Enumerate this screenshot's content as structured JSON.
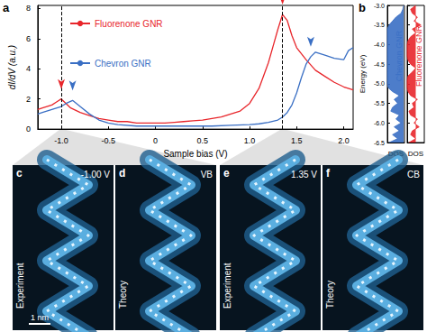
{
  "chart_data": [
    {
      "type": "line",
      "panel": "a",
      "x_label": "Sample bias (V)",
      "y_label": "dI/dV (a.u.)",
      "xlim": [
        -1.25,
        2.1
      ],
      "xticks": [
        {
          "value": -1.0,
          "label": "-1.0"
        },
        -0.5,
        0,
        0.5,
        {
          "value": 1.0,
          "label": "1.0"
        },
        1.5,
        {
          "value": 2.0,
          "label": "2.0"
        }
      ],
      "ylim": [
        0,
        8.2
      ],
      "yticks": [
        0,
        2,
        4,
        6,
        8
      ],
      "grid": false,
      "legend": "upper left",
      "vlines": [
        -1.0,
        1.35
      ],
      "series": [
        {
          "name": "Fluorenone GNR",
          "color": "#e8262b",
          "x": [
            -1.25,
            -1.2,
            -1.1,
            -1.05,
            -1.0,
            -0.95,
            -0.9,
            -0.8,
            -0.7,
            -0.6,
            -0.5,
            -0.4,
            -0.3,
            -0.2,
            -0.1,
            0,
            0.1,
            0.2,
            0.3,
            0.4,
            0.5,
            0.6,
            0.7,
            0.8,
            0.9,
            1.0,
            1.1,
            1.2,
            1.25,
            1.3,
            1.35,
            1.4,
            1.45,
            1.5,
            1.6,
            1.7,
            1.8,
            1.9,
            2.0,
            2.1
          ],
          "values": [
            1.3,
            1.4,
            1.6,
            1.8,
            2.0,
            1.7,
            1.4,
            1.1,
            0.9,
            0.7,
            0.6,
            0.5,
            0.5,
            0.4,
            0.4,
            0.4,
            0.4,
            0.45,
            0.5,
            0.55,
            0.6,
            0.7,
            0.8,
            1.0,
            1.2,
            1.7,
            2.7,
            4.4,
            5.5,
            6.6,
            7.6,
            7.2,
            6.2,
            5.4,
            4.6,
            3.9,
            3.5,
            3.1,
            2.8,
            2.6
          ],
          "peaks": [
            -1.0,
            1.35
          ]
        },
        {
          "name": "Chevron GNR",
          "color": "#3a6fc4",
          "x": [
            -1.25,
            -1.2,
            -1.1,
            -1.0,
            -0.95,
            -0.88,
            -0.8,
            -0.7,
            -0.6,
            -0.5,
            -0.4,
            -0.2,
            0,
            0.2,
            0.4,
            0.6,
            0.8,
            1.0,
            1.1,
            1.2,
            1.3,
            1.35,
            1.4,
            1.45,
            1.5,
            1.55,
            1.6,
            1.65,
            1.7,
            1.8,
            1.9,
            2.0,
            2.05,
            2.1
          ],
          "values": [
            1.0,
            1.1,
            1.3,
            1.5,
            1.7,
            1.9,
            1.5,
            1.0,
            0.6,
            0.4,
            0.3,
            0.2,
            0.2,
            0.2,
            0.2,
            0.2,
            0.25,
            0.3,
            0.35,
            0.45,
            0.6,
            0.8,
            1.1,
            1.6,
            2.4,
            3.4,
            4.3,
            4.8,
            5.1,
            4.9,
            4.7,
            4.6,
            5.2,
            5.4
          ],
          "peaks": [
            -0.88,
            1.65
          ]
        }
      ]
    },
    {
      "type": "area",
      "panel": "b",
      "name": "Chevron GNR",
      "color": "#3a6fc4",
      "x_label": "DOS",
      "y_label": "Energy (eV)",
      "tick_labels": "y",
      "grid": false,
      "xlim": [
        0,
        1
      ],
      "ylim": [
        -6.5,
        -3.0
      ],
      "yticks": [
        {
          "value": -3.0,
          "label": "-3.0"
        },
        -3.5,
        {
          "value": -4.0,
          "label": "-4.0"
        },
        -4.5,
        {
          "value": -5.0,
          "label": "-5.0"
        },
        -5.5,
        {
          "value": -6.0,
          "label": "-6.0"
        },
        -6.5
      ],
      "energy": [
        -6.5,
        -6.4,
        -6.3,
        -6.2,
        -6.1,
        -6.0,
        -5.9,
        -5.8,
        -5.7,
        -5.6,
        -5.5,
        -5.4,
        -5.3,
        -5.2,
        -5.1,
        -5.0,
        -4.9,
        -4.8,
        -4.7,
        -4.6,
        -4.5,
        -4.4,
        -4.3,
        -4.2,
        -4.1,
        -4.0,
        -3.9,
        -3.8,
        -3.7,
        -3.6,
        -3.5,
        -3.4,
        -3.3,
        -3.2,
        -3.1,
        -3.0
      ],
      "dos": [
        0.1,
        0.6,
        0.3,
        0.7,
        0.4,
        0.8,
        0.5,
        0.7,
        0.2,
        0.3,
        0.6,
        0.4,
        0.7,
        0.3,
        0.05,
        0,
        0,
        0,
        0,
        0,
        0,
        0,
        0,
        0,
        0,
        0,
        0,
        0,
        0,
        0,
        0.1,
        0.3,
        0.5,
        0.8,
        0.9,
        0.95
      ]
    },
    {
      "type": "area",
      "name": "Fluorenone GNR",
      "color": "#e8262b",
      "x_label": "DOS",
      "tick_labels": false,
      "grid": false,
      "xlim": [
        0,
        1
      ],
      "ylim": [
        -6.5,
        -3.0
      ],
      "yticks": [
        {
          "value": -3.0,
          "label": "-3.0"
        },
        -3.5,
        {
          "value": -4.0,
          "label": "-4.0"
        },
        -4.5,
        {
          "value": -5.0,
          "label": "-5.0"
        },
        -5.5,
        {
          "value": -6.0,
          "label": "-6.0"
        },
        -6.5
      ],
      "energy": [
        -6.5,
        -6.4,
        -6.3,
        -6.2,
        -6.1,
        -6.0,
        -5.9,
        -5.8,
        -5.7,
        -5.6,
        -5.5,
        -5.4,
        -5.3,
        -5.2,
        -5.1,
        -5.0,
        -4.9,
        -4.8,
        -4.7,
        -4.6,
        -4.5,
        -4.4,
        -4.3,
        -4.2,
        -4.1,
        -4.0,
        -3.9,
        -3.8,
        -3.7,
        -3.6,
        -3.5,
        -3.4,
        -3.3,
        -3.2,
        -3.1,
        -3.0
      ],
      "dos": [
        0.1,
        0.5,
        0.2,
        0.3,
        0.7,
        0.4,
        0.6,
        0.2,
        0.1,
        0.4,
        0.3,
        0.6,
        0.2,
        0.05,
        0,
        0,
        0,
        0.05,
        0.3,
        0.5,
        0.2,
        0.05,
        0,
        0,
        0,
        0,
        0.05,
        0.2,
        0.5,
        0.3,
        0.8,
        0.4,
        0.6,
        0.3,
        0.2,
        0.5
      ]
    }
  ],
  "image_panels": [
    {
      "panel": "c",
      "label": "Experiment",
      "annotation": "-1.00 V",
      "scale_bar": "1 nm"
    },
    {
      "panel": "d",
      "label": "Theory",
      "annotation": "VB"
    },
    {
      "panel": "e",
      "label": "Experiment",
      "annotation": "1.35 V"
    },
    {
      "panel": "f",
      "label": "Theory",
      "annotation": "CB"
    }
  ]
}
